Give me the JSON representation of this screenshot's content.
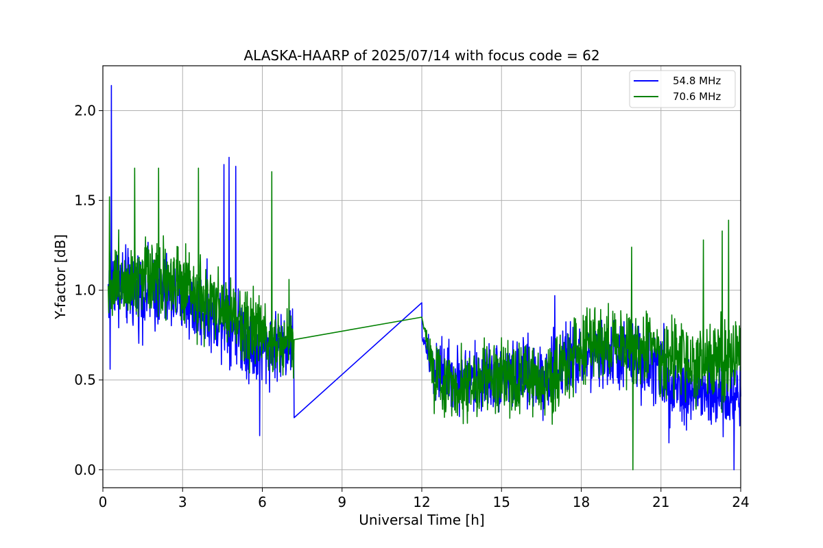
{
  "chart_data": {
    "type": "line",
    "title": "ALASKA-HAARP of 2025/07/14 with focus code = 62",
    "xlabel": "Universal Time [h]",
    "ylabel": "Y-factor [dB]",
    "xlim": [
      0,
      24
    ],
    "ylim": [
      -0.1,
      2.25
    ],
    "xticks": [
      0,
      3,
      6,
      9,
      12,
      15,
      18,
      21,
      24
    ],
    "xtick_labels": [
      "0",
      "3",
      "6",
      "9",
      "12",
      "15",
      "18",
      "21",
      "24"
    ],
    "yticks": [
      0.0,
      0.5,
      1.0,
      1.5,
      2.0
    ],
    "ytick_labels": [
      "0.0",
      "0.5",
      "1.0",
      "1.5",
      "2.0"
    ],
    "grid": true,
    "legend_position": "top-right",
    "series": [
      {
        "name": "54.8 MHz",
        "color": "#0000ff",
        "x": [
          0.2,
          0.3,
          0.35,
          0.5,
          1.0,
          1.5,
          2.0,
          2.5,
          3.0,
          3.5,
          4.0,
          4.5,
          4.7,
          5.0,
          5.5,
          5.7,
          6.0,
          6.5,
          7.0,
          7.2,
          12.0,
          12.5,
          13.0,
          13.5,
          14.0,
          14.5,
          15.0,
          15.5,
          16.0,
          16.5,
          17.0,
          17.5,
          18.0,
          18.5,
          19.0,
          19.5,
          20.0,
          20.5,
          21.0,
          21.5,
          22.0,
          22.5,
          23.0,
          23.5,
          23.75,
          24.0
        ],
        "center": [
          1.0,
          1.05,
          1.05,
          1.05,
          1.0,
          1.0,
          1.0,
          0.98,
          0.95,
          0.9,
          0.88,
          0.85,
          0.83,
          0.8,
          0.72,
          0.68,
          0.67,
          0.7,
          0.7,
          0.72,
          0.74,
          0.55,
          0.52,
          0.5,
          0.5,
          0.52,
          0.52,
          0.52,
          0.52,
          0.52,
          0.54,
          0.62,
          0.62,
          0.62,
          0.64,
          0.64,
          0.62,
          0.6,
          0.55,
          0.48,
          0.45,
          0.42,
          0.42,
          0.4,
          0.4,
          0.45
        ],
        "amplitude": [
          0.3,
          0.3,
          0.3,
          0.32,
          0.32,
          0.34,
          0.34,
          0.32,
          0.3,
          0.3,
          0.3,
          0.3,
          0.3,
          0.3,
          0.32,
          0.3,
          0.3,
          0.28,
          0.28,
          0.28,
          0.0,
          0.28,
          0.28,
          0.28,
          0.28,
          0.28,
          0.28,
          0.28,
          0.28,
          0.3,
          0.32,
          0.3,
          0.28,
          0.28,
          0.28,
          0.3,
          0.3,
          0.3,
          0.32,
          0.3,
          0.3,
          0.3,
          0.3,
          0.3,
          0.3,
          0.32
        ],
        "spikes": [
          [
            0.32,
            2.14
          ],
          [
            0.27,
            0.56
          ],
          [
            4.55,
            1.7
          ],
          [
            4.75,
            1.74
          ],
          [
            5.0,
            1.69
          ],
          [
            5.9,
            0.19
          ],
          [
            7.2,
            0.29
          ],
          [
            12.0,
            0.93
          ],
          [
            17.0,
            0.97
          ],
          [
            23.75,
            0.0
          ],
          [
            21.3,
            0.15
          ]
        ]
      },
      {
        "name": "70.6 MHz",
        "color": "#008000",
        "x": [
          0.2,
          0.5,
          1.0,
          1.5,
          2.0,
          2.5,
          3.0,
          3.5,
          4.0,
          4.5,
          5.0,
          5.5,
          6.0,
          6.5,
          7.0,
          7.2,
          12.0,
          12.5,
          13.0,
          13.5,
          14.0,
          14.5,
          15.0,
          15.5,
          16.0,
          16.5,
          17.0,
          17.5,
          18.0,
          18.5,
          19.0,
          19.5,
          20.0,
          20.5,
          21.0,
          21.5,
          22.0,
          22.5,
          23.0,
          23.5,
          24.0
        ],
        "center": [
          1.03,
          1.05,
          1.08,
          1.1,
          1.1,
          1.06,
          1.0,
          0.95,
          0.92,
          0.9,
          0.85,
          0.8,
          0.75,
          0.72,
          0.72,
          0.75,
          0.85,
          0.5,
          0.48,
          0.48,
          0.48,
          0.5,
          0.5,
          0.5,
          0.5,
          0.5,
          0.52,
          0.62,
          0.68,
          0.7,
          0.7,
          0.7,
          0.68,
          0.68,
          0.64,
          0.6,
          0.6,
          0.58,
          0.6,
          0.6,
          0.62
        ],
        "amplitude": [
          0.3,
          0.32,
          0.34,
          0.36,
          0.36,
          0.34,
          0.32,
          0.3,
          0.3,
          0.3,
          0.3,
          0.3,
          0.3,
          0.28,
          0.28,
          0.28,
          0.0,
          0.28,
          0.28,
          0.28,
          0.28,
          0.28,
          0.28,
          0.28,
          0.28,
          0.3,
          0.3,
          0.32,
          0.32,
          0.32,
          0.32,
          0.32,
          0.32,
          0.32,
          0.32,
          0.32,
          0.34,
          0.36,
          0.38,
          0.4,
          0.38
        ],
        "spikes": [
          [
            0.25,
            1.52
          ],
          [
            1.2,
            1.68
          ],
          [
            2.1,
            1.68
          ],
          [
            3.6,
            1.68
          ],
          [
            6.35,
            1.66
          ],
          [
            7.0,
            1.06
          ],
          [
            19.9,
            1.24
          ],
          [
            19.95,
            0.0
          ],
          [
            22.6,
            1.28
          ],
          [
            23.55,
            1.39
          ],
          [
            23.3,
            1.33
          ]
        ]
      }
    ]
  }
}
